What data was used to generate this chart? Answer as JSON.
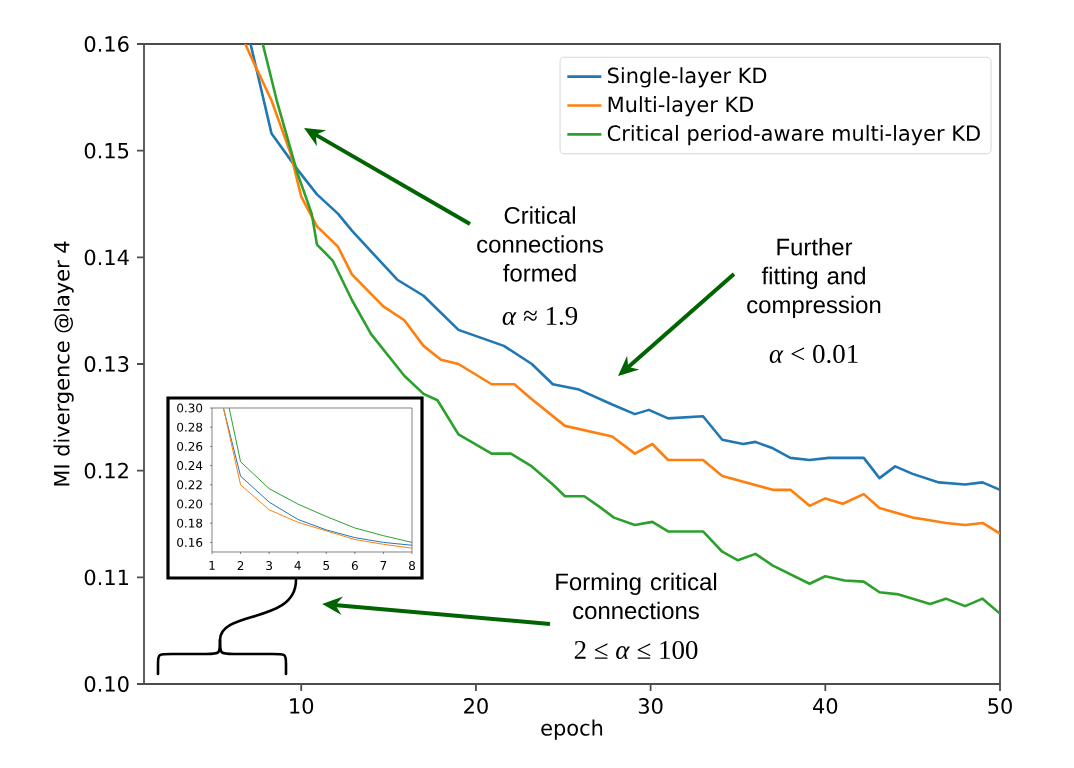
{
  "chart_data": [
    {
      "type": "line",
      "xlabel": "epoch",
      "ylabel": "MI divergence @layer 4",
      "xlim": [
        1,
        50
      ],
      "ylim": [
        0.1,
        0.16
      ],
      "xticks": [
        10,
        20,
        30,
        40,
        50
      ],
      "yticks": [
        {
          "value": 0.1,
          "label": "0.10"
        },
        {
          "value": 0.11,
          "label": "0.11"
        },
        {
          "value": 0.12,
          "label": "0.12"
        },
        {
          "value": 0.13,
          "label": "0.13"
        },
        {
          "value": 0.14,
          "label": "0.14"
        },
        {
          "value": 0.15,
          "label": "0.15"
        },
        {
          "value": 0.16,
          "label": "0.16"
        }
      ],
      "legend": "top right",
      "grid": false,
      "series": [
        {
          "name": "Single-layer KD",
          "color": "#1f77b4",
          "x": [
            7.1,
            8.3,
            9.8,
            10.9,
            12.1,
            12.9,
            15.5,
            17,
            19,
            21.6,
            23.2,
            24.4,
            25.9,
            27.8,
            29.1,
            29.9,
            31,
            33,
            34.1,
            35.3,
            36,
            37,
            38,
            39.1,
            40.2,
            42.2,
            43.1,
            44,
            45,
            46.5,
            48,
            49,
            50
          ],
          "values": [
            0.16,
            0.1516,
            0.1482,
            0.1459,
            0.1441,
            0.1425,
            0.1379,
            0.1364,
            0.1332,
            0.1317,
            0.13,
            0.1281,
            0.1276,
            0.1262,
            0.1253,
            0.1257,
            0.1249,
            0.1251,
            0.1229,
            0.1225,
            0.1227,
            0.1221,
            0.1212,
            0.121,
            0.1212,
            0.1212,
            0.1193,
            0.1204,
            0.1197,
            0.1189,
            0.1187,
            0.1189,
            0.1182
          ]
        },
        {
          "name": "Multi-layer KD",
          "color": "#ff7f0e",
          "x": [
            6.8,
            7.1,
            8.3,
            9.4,
            10,
            10.9,
            12.1,
            12.9,
            14.7,
            15.9,
            17,
            18,
            19,
            20.9,
            22.2,
            23.2,
            25.1,
            27.8,
            29.1,
            30.1,
            31,
            33,
            34.1,
            37,
            38,
            39.1,
            40,
            41,
            42.2,
            43.1,
            45,
            45.8,
            46.9,
            48,
            49,
            50
          ],
          "values": [
            0.16,
            0.1589,
            0.1547,
            0.1497,
            0.1457,
            0.1429,
            0.141,
            0.1384,
            0.1354,
            0.1341,
            0.1317,
            0.1304,
            0.13,
            0.1281,
            0.1281,
            0.1267,
            0.1242,
            0.1232,
            0.1216,
            0.1225,
            0.121,
            0.121,
            0.1195,
            0.1182,
            0.1182,
            0.1167,
            0.1174,
            0.1169,
            0.1178,
            0.1165,
            0.1156,
            0.1154,
            0.1151,
            0.1149,
            0.1151,
            0.1141
          ]
        },
        {
          "name": "Critical period-aware multi-layer KD",
          "color": "#2ca02c",
          "x": [
            7.8,
            8.6,
            9.8,
            10.6,
            10.9,
            11.8,
            12.9,
            14,
            15.9,
            17,
            17.8,
            19,
            20.9,
            22,
            23.2,
            24.4,
            25.1,
            26.2,
            27,
            27.9,
            29.1,
            30.1,
            31,
            33,
            34.1,
            35,
            36,
            37,
            39.1,
            40,
            41.1,
            42.2,
            43.1,
            44.2,
            46,
            46.9,
            48,
            49,
            50
          ],
          "values": [
            0.16,
            0.1547,
            0.1478,
            0.1441,
            0.1412,
            0.1397,
            0.136,
            0.1328,
            0.1289,
            0.1272,
            0.1266,
            0.1234,
            0.1216,
            0.1216,
            0.1204,
            0.1187,
            0.1176,
            0.1176,
            0.1167,
            0.1156,
            0.1149,
            0.1152,
            0.1143,
            0.1143,
            0.1124,
            0.1116,
            0.1122,
            0.1111,
            0.1094,
            0.1101,
            0.1097,
            0.1096,
            0.1086,
            0.1084,
            0.1075,
            0.108,
            0.1073,
            0.108,
            0.1066
          ]
        }
      ],
      "annotations": [
        "Critical connections formed",
        "*α* ≈ 1.9",
        "Further fitting and compression",
        "*α* < 0.01",
        "Forming critical connections",
        "2 ≤ *α* ≤ 100"
      ]
    },
    {
      "type": "line",
      "xlim": [
        1,
        8
      ],
      "ylim": [
        0.15,
        0.3
      ],
      "xticks": [
        1,
        2,
        3,
        4,
        5,
        6,
        7,
        8
      ],
      "yticks": [
        {
          "value": 0.16,
          "label": "0.16"
        },
        {
          "value": 0.18,
          "label": "0.18"
        },
        {
          "value": 0.2,
          "label": "0.20"
        },
        {
          "value": 0.22,
          "label": "0.22"
        },
        {
          "value": 0.24,
          "label": "0.24"
        },
        {
          "value": 0.26,
          "label": "0.26"
        },
        {
          "value": 0.28,
          "label": "0.28"
        },
        {
          "value": 0.3,
          "label": "0.30"
        }
      ],
      "series": [
        {
          "color": "#1f77b4",
          "x": [
            1.4,
            2,
            3,
            4,
            5,
            6,
            7,
            8
          ],
          "values": [
            0.3,
            0.229,
            0.202,
            0.184,
            0.173,
            0.165,
            0.16,
            0.157
          ]
        },
        {
          "color": "#ff7f0e",
          "x": [
            1.4,
            2,
            3,
            4,
            5,
            6,
            7,
            8
          ],
          "values": [
            0.3,
            0.22,
            0.194,
            0.181,
            0.172,
            0.163,
            0.158,
            0.154
          ]
        },
        {
          "color": "#2ca02c",
          "x": [
            1.6,
            2,
            3,
            4,
            5,
            6,
            7,
            8
          ],
          "values": [
            0.3,
            0.244,
            0.216,
            0.2,
            0.187,
            0.175,
            0.167,
            0.16
          ]
        }
      ]
    }
  ]
}
